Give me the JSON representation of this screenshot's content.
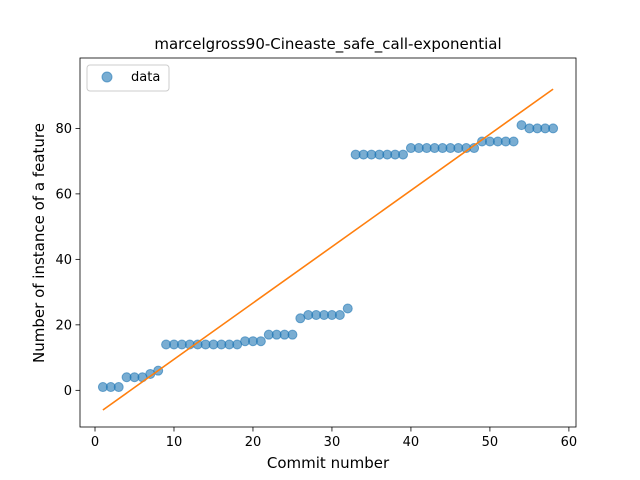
{
  "chart_data": {
    "type": "scatter",
    "title": "marcelgross90-Cineaste_safe_call-exponential",
    "xlabel": "Commit number",
    "ylabel": "Number of instance of a feature",
    "xlim": [
      -1.9,
      60.9
    ],
    "ylim": [
      -11.2,
      101.5
    ],
    "xticks": [
      0,
      10,
      20,
      30,
      40,
      50,
      60
    ],
    "yticks": [
      0,
      20,
      40,
      60,
      80
    ],
    "grid": false,
    "legend": {
      "position": "top-left",
      "entries": [
        "data"
      ]
    },
    "colors": {
      "data": "#1f77b4",
      "fit": "#ff7f0e"
    },
    "series": [
      {
        "name": "data",
        "kind": "scatter",
        "x": [
          1,
          2,
          3,
          4,
          5,
          6,
          7,
          8,
          9,
          10,
          11,
          12,
          13,
          14,
          15,
          16,
          17,
          18,
          19,
          20,
          21,
          22,
          23,
          24,
          25,
          26,
          27,
          28,
          29,
          30,
          31,
          32,
          33,
          34,
          35,
          36,
          37,
          38,
          39,
          40,
          41,
          42,
          43,
          44,
          45,
          46,
          47,
          48,
          49,
          50,
          51,
          52,
          53,
          54,
          55,
          56,
          57,
          58
        ],
        "y": [
          1,
          1,
          1,
          4,
          4,
          4,
          5,
          6,
          14,
          14,
          14,
          14,
          14,
          14,
          14,
          14,
          14,
          14,
          15,
          15,
          15,
          17,
          17,
          17,
          17,
          22,
          23,
          23,
          23,
          23,
          23,
          25,
          72,
          72,
          72,
          72,
          72,
          72,
          72,
          74,
          74,
          74,
          74,
          74,
          74,
          74,
          74,
          74,
          76,
          76,
          76,
          76,
          76,
          81,
          80,
          80,
          80,
          80
        ]
      },
      {
        "kind": "line",
        "x": [
          1,
          58
        ],
        "y": [
          -6,
          92
        ]
      }
    ]
  }
}
